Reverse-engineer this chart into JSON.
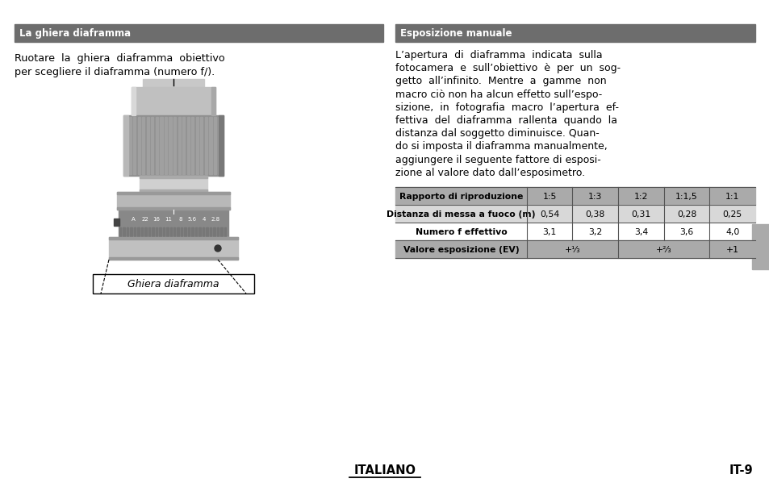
{
  "header_bg": "#6d6d6d",
  "header_text_color": "#ffffff",
  "left_header": "La ghiera diaframma",
  "right_header": "Esposizione manuale",
  "left_body_lines": [
    "Ruotare  la  ghiera  diaframma  obiettivo",
    "per scegliere il diaframma (numero f/)."
  ],
  "right_body_lines": [
    "L’apertura  di  diaframma  indicata  sulla",
    "fotocamera  e  sull’obiettivo  è  per  un  sog-",
    "getto  all’infinito.  Mentre  a  gamme  non",
    "macro ciò non ha alcun effetto sull’espo-",
    "sizione,  in  fotografia  macro  l’apertura  ef-",
    "fettiva  del  diaframma  rallenta  quando  la",
    "distanza dal soggetto diminuisce. Quan-",
    "do si imposta il diaframma manualmente,",
    "aggiungere il seguente fattore di esposi-",
    "zione al valore dato dall’esposimetro."
  ],
  "table_header_row": [
    "Rapporto di riproduzione",
    "1:5",
    "1:3",
    "1:2",
    "1:1,5",
    "1:1"
  ],
  "table_row1": [
    "Distanza di messa a fuoco (m)",
    "0,54",
    "0,38",
    "0,31",
    "0,28",
    "0,25"
  ],
  "table_row2": [
    "Numero f effettivo",
    "3,1",
    "3,2",
    "3,4",
    "3,6",
    "4,0"
  ],
  "table_row3_label": "Valore esposizione (EV)",
  "table_row3_vals": [
    "+¹⁄₃",
    "+²⁄₃",
    "+1"
  ],
  "table_bg_header": "#aaaaaa",
  "table_bg_row1": "#d8d8d8",
  "table_bg_row2": "#ffffff",
  "table_bg_row3": "#aaaaaa",
  "footer_center": "ITALIANO",
  "footer_right": "IT-9",
  "sidebar_color": "#aaaaaa",
  "page_bg": "#ffffff",
  "lens_scale": [
    "A",
    "22",
    "16",
    "11",
    "8",
    "5.6",
    "4",
    "2.8"
  ]
}
